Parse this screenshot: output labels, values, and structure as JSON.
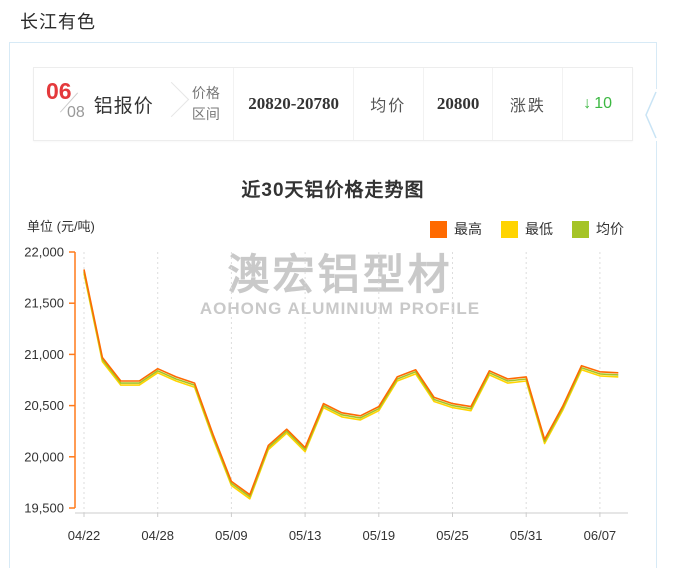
{
  "page": {
    "title": "长江有色"
  },
  "quote_bar": {
    "date": {
      "month": "06",
      "day": "08"
    },
    "product": "铝报价",
    "range_label_line1": "价格",
    "range_label_line2": "区间",
    "range_value": "20820-20780",
    "avg_label": "均价",
    "avg_value": "20800",
    "change_label": "涨跌",
    "change_arrow": "↓",
    "change_value": "10",
    "change_direction": "down"
  },
  "watermark": {
    "line1": "澳宏铝型材",
    "line2": "AOHONG ALUMINIUM PROFILE"
  },
  "colors": {
    "accent_red": "#e4393c",
    "change_green": "#3cb842",
    "high_orange": "#ff6a00",
    "low_yellow": "#ffd400",
    "avg_green": "#a5c426",
    "axis_orange": "#ff7a1a",
    "panel_border_blue": "#d7eaf6",
    "watermark_gray": "#c9c9c9"
  },
  "chart_data": {
    "type": "line",
    "title": "近30天铝价格走势图",
    "unit_label": "单位 (元/吨)",
    "legend": [
      {
        "label": "最高",
        "color": "#ff6a00"
      },
      {
        "label": "最低",
        "color": "#ffd400"
      },
      {
        "label": "均价",
        "color": "#a5c426"
      }
    ],
    "x_tick_labels": [
      "04/22",
      "04/28",
      "05/09",
      "05/13",
      "05/19",
      "05/25",
      "05/31",
      "06/07"
    ],
    "points_per_tick": 4,
    "n_points": 30,
    "ylim": [
      19500,
      22000
    ],
    "y_tick_labels": [
      "22,000",
      "21,500",
      "21,000",
      "20,500",
      "20,000",
      "19,500"
    ],
    "axis_color": "#ff7a1a",
    "grid_color": "#dddddd",
    "grid": "vertical-dotted",
    "legend_position": "top-right",
    "series": [
      {
        "name": "最高",
        "color": "#ff6a00",
        "draw_order": 3,
        "values": [
          21830,
          20970,
          20740,
          20740,
          20860,
          20780,
          20720,
          20220,
          19760,
          19630,
          20110,
          20270,
          20090,
          20520,
          20430,
          20400,
          20490,
          20780,
          20850,
          20580,
          20520,
          20490,
          20840,
          20760,
          20780,
          20170,
          20500,
          20890,
          20830,
          20820
        ]
      },
      {
        "name": "最低",
        "color": "#ffd400",
        "draw_order": 1,
        "values": [
          21790,
          20930,
          20700,
          20700,
          20820,
          20740,
          20680,
          20180,
          19720,
          19590,
          20070,
          20230,
          20050,
          20480,
          20390,
          20360,
          20450,
          20740,
          20810,
          20540,
          20480,
          20450,
          20800,
          20720,
          20740,
          20130,
          20460,
          20850,
          20790,
          20780
        ]
      },
      {
        "name": "均价",
        "color": "#a5c426",
        "draw_order": 2,
        "values": [
          21810,
          20950,
          20720,
          20720,
          20840,
          20760,
          20700,
          20200,
          19740,
          19610,
          20090,
          20250,
          20070,
          20500,
          20410,
          20380,
          20470,
          20760,
          20830,
          20560,
          20500,
          20470,
          20820,
          20740,
          20760,
          20150,
          20480,
          20870,
          20810,
          20800
        ]
      }
    ]
  }
}
